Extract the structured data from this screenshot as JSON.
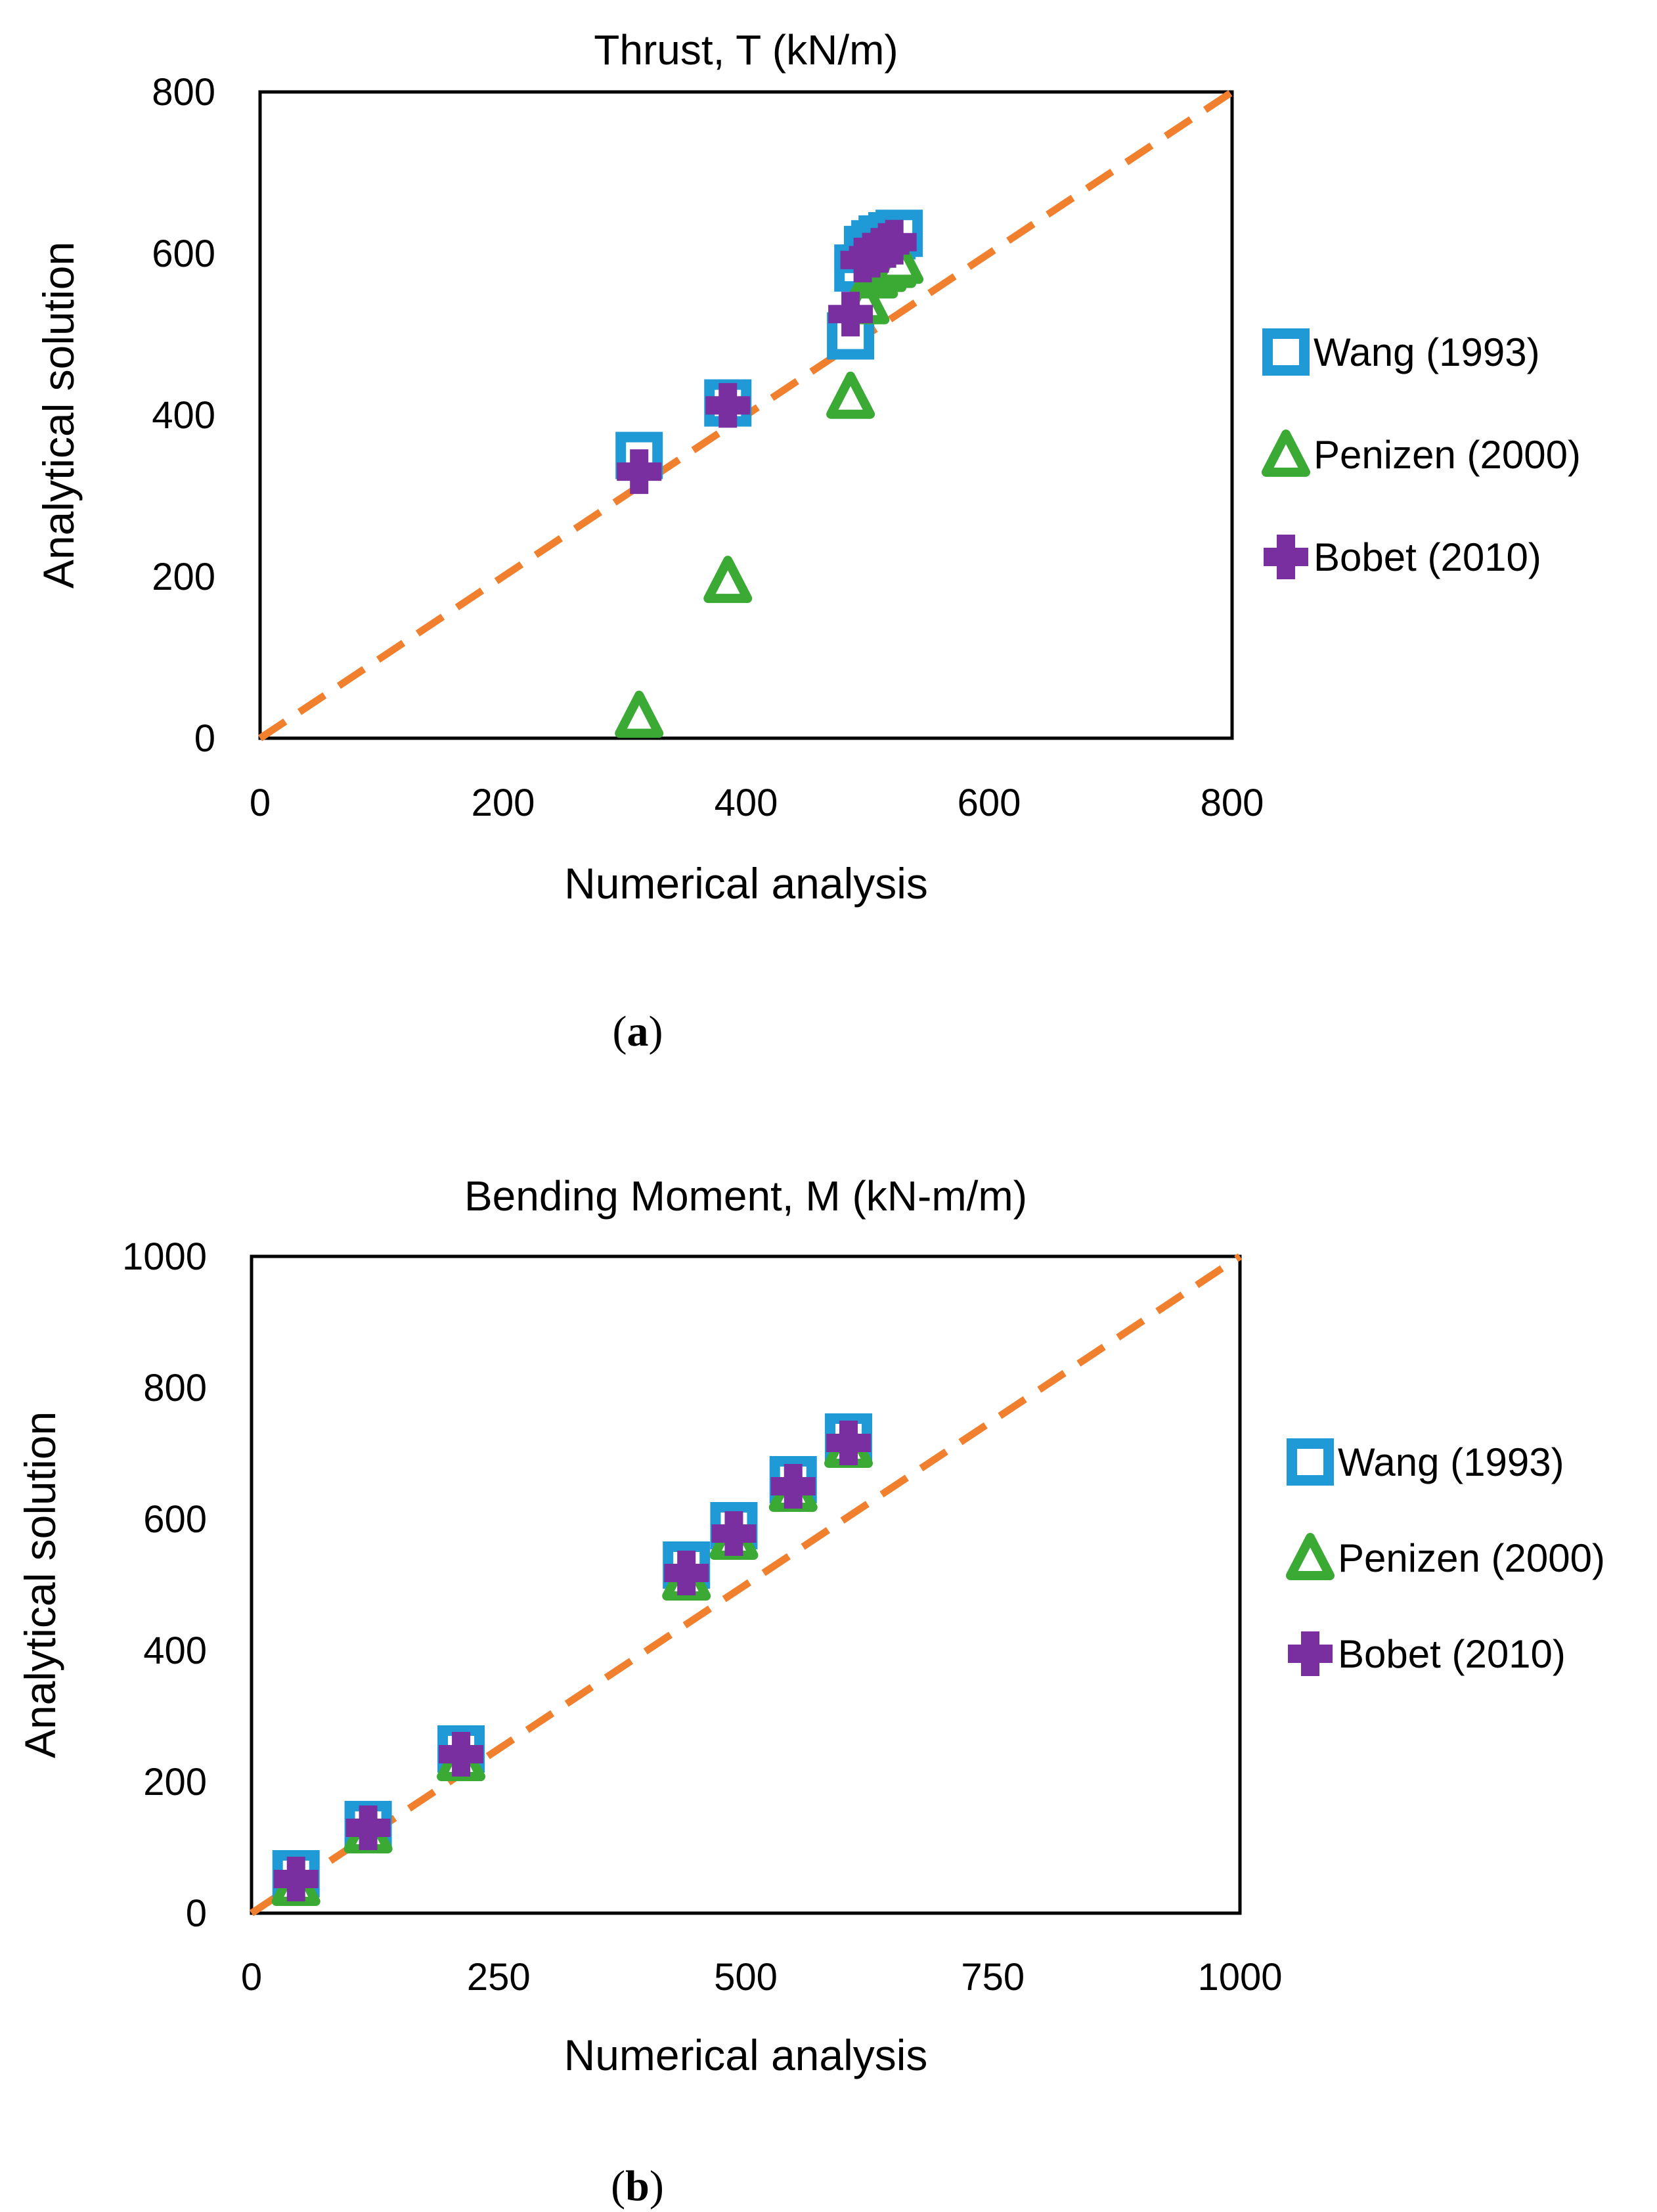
{
  "colors": {
    "wang": "#1f9ad6",
    "penizen": "#3aaa35",
    "bobet": "#7a2fa0",
    "reference_line": "#f07f2e",
    "axes": "#000000"
  },
  "chart_data": [
    {
      "id": "a",
      "type": "scatter",
      "title": "Thrust, T (kN/m)",
      "xlabel": "Numerical analysis",
      "ylabel": "Analytical solution",
      "xlim": [
        0,
        800
      ],
      "ylim": [
        0,
        800
      ],
      "xticks": [
        0,
        200,
        400,
        600,
        800
      ],
      "yticks": [
        0,
        200,
        400,
        600,
        800
      ],
      "grid": false,
      "legend_position": "right",
      "reference_line": {
        "from": [
          0,
          0
        ],
        "to": [
          800,
          800
        ],
        "style": "dashed"
      },
      "caption_open": "(",
      "caption_letter": "a",
      "caption_close": ")",
      "series": [
        {
          "name": "Wang (1993)",
          "marker": "square",
          "color": "#1f9ad6",
          "x": [
            312,
            385,
            486,
            492,
            500,
            506,
            512,
            520,
            526
          ],
          "y": [
            350,
            415,
            498,
            582,
            605,
            612,
            618,
            622,
            625
          ]
        },
        {
          "name": "Penizen (2000)",
          "marker": "triangle",
          "color": "#3aaa35",
          "x": [
            312,
            385,
            486,
            498,
            505,
            512,
            520,
            526
          ],
          "y": [
            28,
            195,
            423,
            540,
            572,
            580,
            585,
            590
          ]
        },
        {
          "name": "Bobet (2010)",
          "marker": "plus",
          "color": "#7a2fa0",
          "x": [
            312,
            385,
            486,
            496,
            503,
            510,
            516,
            522
          ],
          "y": [
            330,
            412,
            525,
            592,
            598,
            604,
            610,
            614
          ]
        }
      ]
    },
    {
      "id": "b",
      "type": "scatter",
      "title": "Bending Moment, M (kN-m/m)",
      "xlabel": "Numerical analysis",
      "ylabel": "Analytical solution",
      "xlim": [
        0,
        1000
      ],
      "ylim": [
        0,
        1000
      ],
      "xticks": [
        0,
        250,
        500,
        750,
        1000
      ],
      "yticks": [
        0,
        200,
        400,
        600,
        800,
        1000
      ],
      "grid": false,
      "legend_position": "right",
      "reference_line": {
        "from": [
          0,
          0
        ],
        "to": [
          1000,
          1000
        ],
        "style": "dashed"
      },
      "caption_open": "(",
      "caption_letter": "b",
      "caption_close": ")",
      "series": [
        {
          "name": "Wang (1993)",
          "marker": "square",
          "color": "#1f9ad6",
          "x": [
            45,
            118,
            212,
            440,
            488,
            548,
            604
          ],
          "y": [
            60,
            135,
            250,
            530,
            590,
            660,
            725
          ]
        },
        {
          "name": "Penizen (2000)",
          "marker": "triangle",
          "color": "#3aaa35",
          "x": [
            45,
            118,
            212,
            440,
            488,
            548,
            604
          ],
          "y": [
            45,
            125,
            235,
            510,
            572,
            645,
            712
          ]
        },
        {
          "name": "Bobet (2010)",
          "marker": "plus",
          "color": "#7a2fa0",
          "x": [
            45,
            118,
            212,
            440,
            488,
            548,
            604
          ],
          "y": [
            52,
            130,
            242,
            518,
            578,
            650,
            716
          ]
        }
      ]
    }
  ]
}
